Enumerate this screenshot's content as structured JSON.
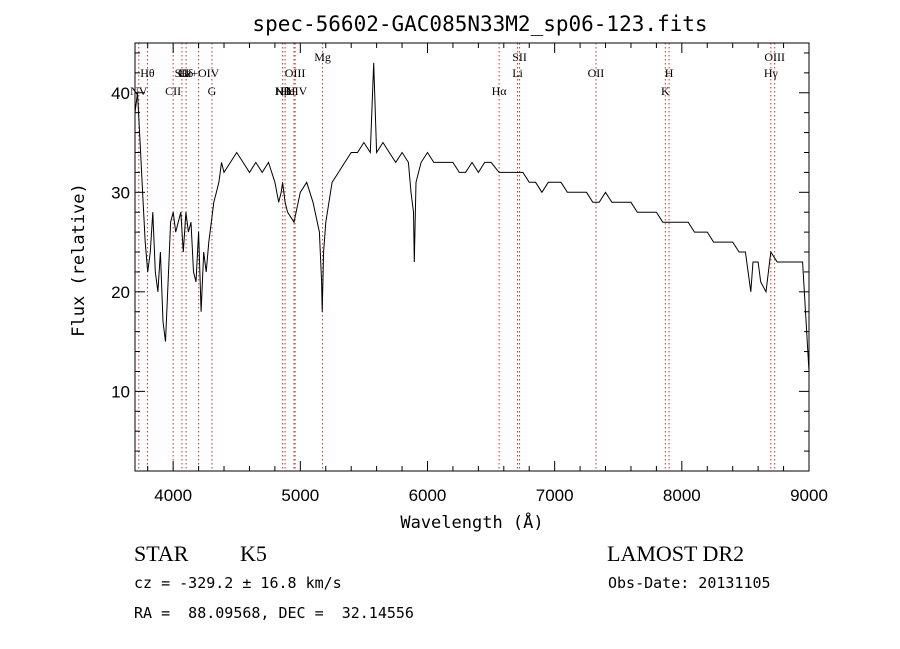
{
  "chart_data": {
    "type": "line",
    "title": "spec-56602-GAC085N33M2_sp06-123.fits",
    "xlabel": "Wavelength (Å)",
    "ylabel": "Flux (relative)",
    "xlim": [
      3700,
      9000
    ],
    "ylim": [
      2,
      45
    ],
    "xticks": [
      4000,
      5000,
      6000,
      7000,
      8000,
      9000
    ],
    "yticks": [
      10,
      20,
      30,
      40
    ],
    "grid": false,
    "series": [
      {
        "x": [
          3700,
          3720,
          3740,
          3760,
          3780,
          3800,
          3820,
          3840,
          3860,
          3880,
          3900,
          3920,
          3940,
          3960,
          3980,
          4000,
          4020,
          4040,
          4060,
          4080,
          4100,
          4120,
          4140,
          4160,
          4180,
          4200,
          4220,
          4240,
          4260,
          4280,
          4300,
          4320,
          4340,
          4360,
          4380,
          4400,
          4450,
          4500,
          4550,
          4600,
          4650,
          4700,
          4750,
          4800,
          4830,
          4850,
          4861,
          4880,
          4900,
          4950,
          5000,
          5050,
          5100,
          5150,
          5167,
          5172,
          5183,
          5200,
          5250,
          5300,
          5350,
          5400,
          5450,
          5500,
          5550,
          5577,
          5600,
          5650,
          5700,
          5750,
          5800,
          5850,
          5870,
          5890,
          5896,
          5910,
          5950,
          6000,
          6050,
          6100,
          6150,
          6200,
          6250,
          6300,
          6350,
          6400,
          6450,
          6500,
          6563,
          6600,
          6650,
          6700,
          6750,
          6800,
          6850,
          6900,
          6950,
          7000,
          7050,
          7100,
          7150,
          7200,
          7250,
          7300,
          7350,
          7400,
          7450,
          7500,
          7550,
          7600,
          7650,
          7700,
          7750,
          7800,
          7850,
          7900,
          7950,
          8000,
          8050,
          8100,
          8150,
          8200,
          8250,
          8300,
          8350,
          8400,
          8450,
          8500,
          8542,
          8560,
          8600,
          8620,
          8662,
          8700,
          8750,
          8800,
          8850,
          8900,
          8950,
          9000
        ],
        "y": [
          38,
          40,
          35,
          30,
          25,
          22,
          24,
          28,
          22,
          20,
          24,
          17,
          15,
          21,
          27,
          28,
          26,
          27,
          28,
          24,
          28,
          26,
          27,
          22,
          21,
          26,
          18,
          24,
          22,
          25,
          27,
          29,
          30,
          31,
          33,
          32,
          33,
          34,
          33,
          32,
          33,
          32,
          33,
          31,
          29,
          30,
          31,
          29,
          28,
          27,
          30,
          31,
          29,
          26,
          21,
          18,
          24,
          27,
          31,
          32,
          33,
          34,
          34,
          35,
          34,
          43,
          34,
          35,
          34,
          33,
          34,
          33,
          30,
          28,
          23,
          31,
          33,
          34,
          33,
          33,
          33,
          33,
          32,
          32,
          33,
          32,
          33,
          33,
          32,
          32,
          32,
          32,
          32,
          31,
          31,
          30,
          31,
          31,
          31,
          30,
          30,
          30,
          30,
          29,
          29,
          30,
          29,
          29,
          29,
          29,
          28,
          28,
          28,
          28,
          27,
          27,
          27,
          27,
          27,
          26,
          26,
          26,
          25,
          25,
          25,
          25,
          24,
          24,
          20,
          23,
          23,
          21,
          20,
          24,
          23,
          23,
          23,
          23,
          23,
          12
        ]
      }
    ],
    "line_markers": [
      {
        "label": "Hθ",
        "x": 3798,
        "row": 1
      },
      {
        "label": "NV",
        "x": 3730,
        "row": 2
      },
      {
        "label": "SII",
        "x": 4069,
        "row": 1
      },
      {
        "label": "CII",
        "x": 4000,
        "row": 2
      },
      {
        "label": "Hδ",
        "x": 4102,
        "row": 1
      },
      {
        "label": "Ca+OIV",
        "x": 4200,
        "row": 1
      },
      {
        "label": "G",
        "x": 4305,
        "row": 2
      },
      {
        "label": "OIII",
        "x": 4959,
        "row": 1
      },
      {
        "label": "Hβ",
        "x": 4861,
        "row": 2
      },
      {
        "label": "NIII",
        "x": 4880,
        "row": 2
      },
      {
        "label": "HeIV",
        "x": 4950,
        "row": 2
      },
      {
        "label": "Mg",
        "x": 5175,
        "row": 0
      },
      {
        "label": "SII",
        "x": 6724,
        "row": 0
      },
      {
        "label": "Li",
        "x": 6708,
        "row": 1
      },
      {
        "label": "Hα",
        "x": 6563,
        "row": 2
      },
      {
        "label": "OII",
        "x": 7325,
        "row": 1
      },
      {
        "label": "H",
        "x": 7900,
        "row": 1
      },
      {
        "label": "K",
        "x": 7870,
        "row": 2
      },
      {
        "label": "OIII",
        "x": 8730,
        "row": 0
      },
      {
        "label": "Hγ",
        "x": 8700,
        "row": 1
      }
    ],
    "marker_color": "#c0392b"
  },
  "info": {
    "object_class": "STAR",
    "subclass": "K5",
    "survey": "LAMOST DR2",
    "redshift": "cz = -329.2 ± 16.8 km/s",
    "obs_date": "Obs-Date: 20131105",
    "coords": "RA =  88.09568, DEC =  32.14556"
  }
}
